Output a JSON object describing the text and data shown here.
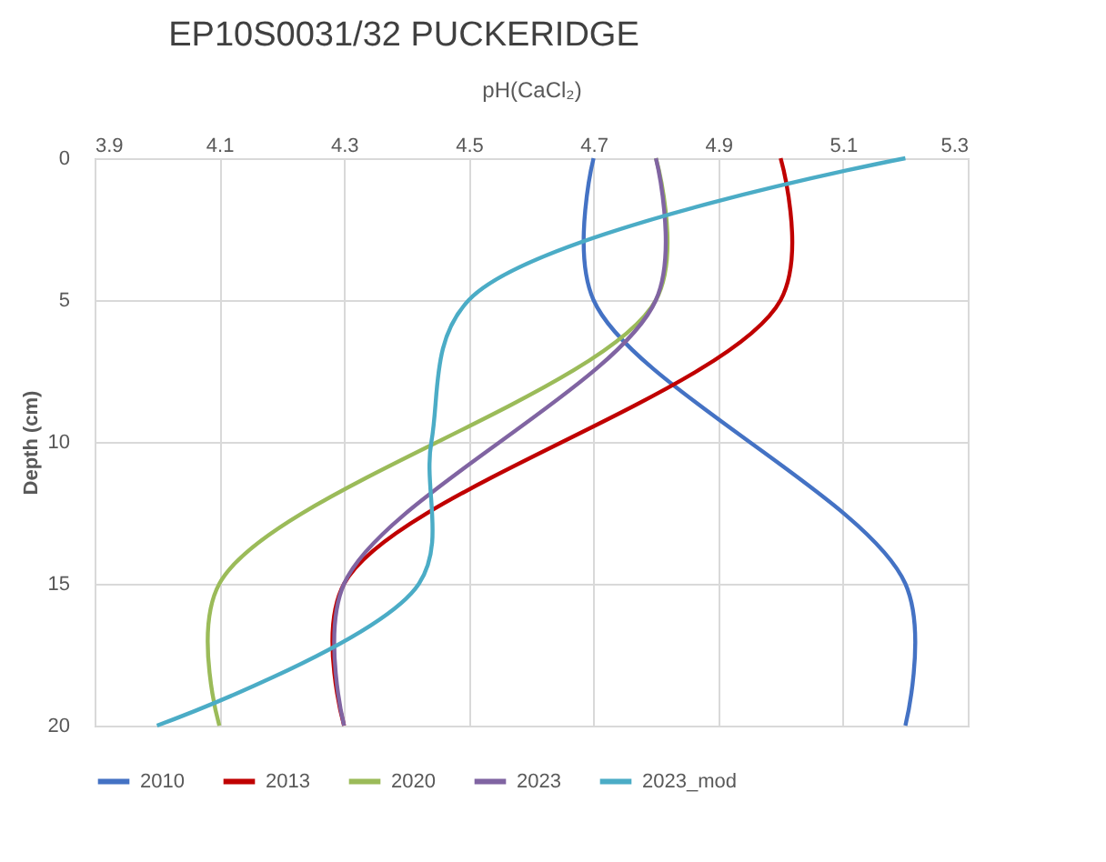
{
  "chart_data": {
    "type": "line",
    "title": "EP10S0031/32 PUCKERIDGE",
    "xlabel": "pH(CaCl₂)",
    "ylabel": "Depth (cm)",
    "xlim": [
      3.9,
      5.3
    ],
    "xticks": [
      3.9,
      4.1,
      4.3,
      4.5,
      4.7,
      4.9,
      5.1,
      5.3
    ],
    "ylim": [
      20,
      0
    ],
    "yticks": [
      0,
      5,
      10,
      15,
      20
    ],
    "grid": true,
    "legend": "bottom",
    "series": [
      {
        "name": "2010",
        "color": "#4472c4",
        "x": [
          4.7,
          4.7,
          5.2,
          5.2
        ],
        "values": [
          0,
          5,
          15,
          20
        ]
      },
      {
        "name": "2013",
        "color": "#c00000",
        "x": [
          5.0,
          5.0,
          4.3,
          4.3
        ],
        "values": [
          0,
          5,
          15,
          20
        ]
      },
      {
        "name": "2020",
        "color": "#9bbb59",
        "x": [
          4.8,
          4.8,
          4.1,
          4.1
        ],
        "values": [
          0,
          5,
          15,
          20
        ]
      },
      {
        "name": "2023",
        "color": "#8064a2",
        "x": [
          4.8,
          4.8,
          4.3,
          4.3
        ],
        "values": [
          0,
          5,
          15,
          20
        ]
      },
      {
        "name": "2023_mod",
        "color": "#4bacc6",
        "x": [
          5.2,
          4.5,
          4.44,
          4.42,
          4.0
        ],
        "values": [
          0,
          5,
          10,
          15,
          20
        ]
      }
    ]
  }
}
